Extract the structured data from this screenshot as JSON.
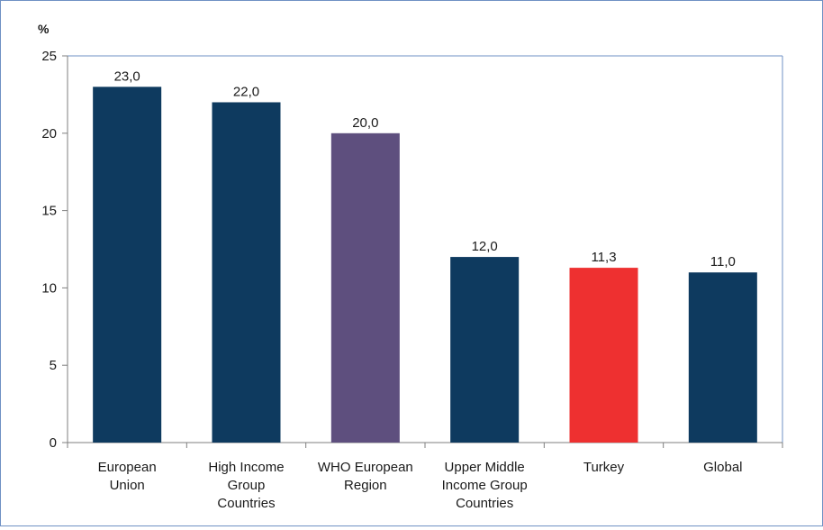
{
  "chart_data": {
    "type": "bar",
    "y_unit_label": "%",
    "categories": [
      [
        "European",
        "Union"
      ],
      [
        "High Income",
        "Group",
        "Countries"
      ],
      [
        "WHO European",
        "Region"
      ],
      [
        "Upper Middle",
        "Income Group",
        "Countries"
      ],
      [
        "Turkey"
      ],
      [
        "Global"
      ]
    ],
    "values": [
      23.0,
      22.0,
      20.0,
      12.0,
      11.3,
      11.0
    ],
    "data_labels": [
      "23,0",
      "22,0",
      "20,0",
      "12,0",
      "11,3",
      "11,0"
    ],
    "bar_colors": [
      "#0e3a5f",
      "#0e3a5f",
      "#5e4f7e",
      "#0e3a5f",
      "#ee3030",
      "#0e3a5f"
    ],
    "ylim": [
      0,
      25
    ],
    "yticks": [
      0,
      5,
      10,
      15,
      20,
      25
    ],
    "grid": false,
    "legend": false,
    "title": "",
    "xlabel": "",
    "ylabel": ""
  }
}
